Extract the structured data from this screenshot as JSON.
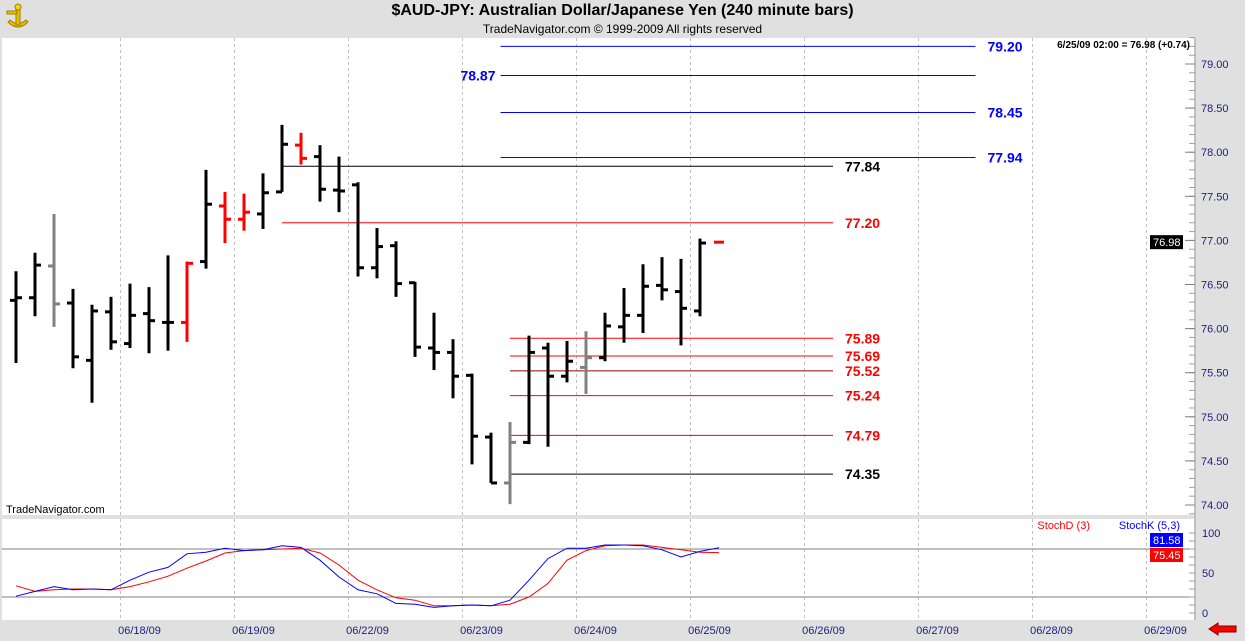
{
  "header": {
    "title": "$AUD-JPY:  Australian Dollar/Japanese Yen  (240 minute bars)",
    "subtitle": "TradeNavigator.com © 1999-2009 All rights reserved",
    "logo_icon": "sextant-icon"
  },
  "watermark": "TradeNavigator.com",
  "readout": "6/25/09 02:00 = 76.98 (+0.74)",
  "colors": {
    "up": "#000000",
    "down": "#ff0000",
    "neutral": "#808080",
    "stochK": "#0000ff",
    "stochD": "#ff0000",
    "blueLevel": "#0000ff"
  },
  "chart_data": [
    {
      "type": "ohlc",
      "title": "$AUD-JPY 240 minute bars",
      "ylim": [
        73.9,
        79.3
      ],
      "y_ticks": [
        "74.00",
        "74.50",
        "75.00",
        "75.50",
        "76.00",
        "76.50",
        "77.00",
        "77.50",
        "78.00",
        "78.50",
        "79.00"
      ],
      "y_tick_values": [
        74,
        74.5,
        75,
        75.5,
        76,
        76.5,
        77,
        77.5,
        78,
        78.5,
        79
      ],
      "last_price_label": "76.98",
      "last_price": 76.98,
      "x_labels": [
        "06/18/09",
        "06/19/09",
        "06/22/09",
        "06/23/09",
        "06/24/09",
        "06/25/09",
        "06/26/09",
        "06/27/09",
        "06/28/09",
        "06/29/09"
      ],
      "x_label_bar_index": [
        5.5,
        11.5,
        17.5,
        23.5,
        29.5,
        35.5,
        41.5,
        47.5,
        53.5,
        59.5
      ],
      "bars": [
        {
          "o": 76.32,
          "h": 76.65,
          "l": 75.61,
          "c": 76.35,
          "k": "up"
        },
        {
          "o": 76.35,
          "h": 76.86,
          "l": 76.14,
          "c": 76.72,
          "k": "up"
        },
        {
          "o": 76.71,
          "h": 77.3,
          "l": 76.02,
          "c": 76.28,
          "k": "neutral"
        },
        {
          "o": 76.29,
          "h": 76.45,
          "l": 75.55,
          "c": 75.68,
          "k": "up"
        },
        {
          "o": 75.64,
          "h": 76.27,
          "l": 75.16,
          "c": 76.2,
          "k": "up"
        },
        {
          "o": 76.19,
          "h": 76.36,
          "l": 75.76,
          "c": 75.85,
          "k": "up"
        },
        {
          "o": 75.83,
          "h": 76.51,
          "l": 75.78,
          "c": 76.15,
          "k": "up"
        },
        {
          "o": 76.17,
          "h": 76.47,
          "l": 75.72,
          "c": 76.09,
          "k": "up"
        },
        {
          "o": 76.07,
          "h": 76.83,
          "l": 75.75,
          "c": 76.07,
          "k": "up"
        },
        {
          "o": 76.07,
          "h": 76.76,
          "l": 75.85,
          "c": 76.74,
          "k": "down"
        },
        {
          "o": 76.76,
          "h": 77.8,
          "l": 76.68,
          "c": 77.41,
          "k": "up"
        },
        {
          "o": 77.39,
          "h": 77.55,
          "l": 76.97,
          "c": 77.24,
          "k": "down"
        },
        {
          "o": 77.24,
          "h": 77.53,
          "l": 77.11,
          "c": 77.32,
          "k": "down"
        },
        {
          "o": 77.3,
          "h": 77.76,
          "l": 77.13,
          "c": 77.54,
          "k": "up"
        },
        {
          "o": 77.55,
          "h": 78.31,
          "l": 77.55,
          "c": 78.09,
          "k": "up"
        },
        {
          "o": 78.08,
          "h": 78.22,
          "l": 77.86,
          "c": 77.93,
          "k": "down"
        },
        {
          "o": 77.95,
          "h": 78.08,
          "l": 77.44,
          "c": 77.58,
          "k": "up"
        },
        {
          "o": 77.57,
          "h": 77.95,
          "l": 77.32,
          "c": 77.56,
          "k": "up"
        },
        {
          "o": 77.63,
          "h": 77.66,
          "l": 76.59,
          "c": 76.69,
          "k": "up"
        },
        {
          "o": 76.69,
          "h": 77.14,
          "l": 76.57,
          "c": 76.93,
          "k": "up"
        },
        {
          "o": 76.94,
          "h": 76.99,
          "l": 76.36,
          "c": 76.51,
          "k": "up"
        },
        {
          "o": 76.52,
          "h": 76.53,
          "l": 75.68,
          "c": 75.79,
          "k": "up"
        },
        {
          "o": 75.78,
          "h": 76.18,
          "l": 75.53,
          "c": 75.73,
          "k": "up"
        },
        {
          "o": 75.73,
          "h": 75.88,
          "l": 75.21,
          "c": 75.46,
          "k": "up"
        },
        {
          "o": 75.47,
          "h": 75.49,
          "l": 74.46,
          "c": 74.78,
          "k": "up"
        },
        {
          "o": 74.77,
          "h": 74.82,
          "l": 74.25,
          "c": 74.25,
          "k": "up"
        },
        {
          "o": 74.25,
          "h": 74.94,
          "l": 74.01,
          "c": 74.71,
          "k": "neutral"
        },
        {
          "o": 74.71,
          "h": 75.92,
          "l": 74.69,
          "c": 75.73,
          "k": "up"
        },
        {
          "o": 75.78,
          "h": 75.84,
          "l": 74.66,
          "c": 75.46,
          "k": "up"
        },
        {
          "o": 75.46,
          "h": 75.86,
          "l": 75.39,
          "c": 75.63,
          "k": "up"
        },
        {
          "o": 75.56,
          "h": 75.97,
          "l": 75.26,
          "c": 75.67,
          "k": "neutral"
        },
        {
          "o": 75.67,
          "h": 76.18,
          "l": 75.63,
          "c": 76.03,
          "k": "up"
        },
        {
          "o": 76.02,
          "h": 76.46,
          "l": 75.84,
          "c": 76.15,
          "k": "up"
        },
        {
          "o": 76.15,
          "h": 76.73,
          "l": 75.95,
          "c": 76.48,
          "k": "up"
        },
        {
          "o": 76.49,
          "h": 76.81,
          "l": 76.32,
          "c": 76.44,
          "k": "up"
        },
        {
          "o": 76.42,
          "h": 76.79,
          "l": 75.81,
          "c": 76.23,
          "k": "up"
        },
        {
          "o": 76.2,
          "h": 77.02,
          "l": 76.14,
          "c": 76.97,
          "k": "up"
        },
        {
          "o": 76.98,
          "h": 76.98,
          "l": 76.98,
          "c": 76.98,
          "k": "down"
        }
      ],
      "levels": [
        {
          "value": 79.2,
          "label": "79.20",
          "color": "#0000ff",
          "from_bar": 25.5,
          "to_bar": 50.5,
          "label_side": "right"
        },
        {
          "value": 78.87,
          "label": "78.87",
          "color": "#0000ff",
          "from_bar": 25.5,
          "to_bar": 50.5,
          "label_side": "left"
        },
        {
          "value": 78.45,
          "label": "78.45",
          "color": "#0000ff",
          "from_bar": 25.5,
          "to_bar": 50.5,
          "label_side": "right"
        },
        {
          "value": 77.94,
          "label": "77.94",
          "color": "#0000ff",
          "from_bar": 25.5,
          "to_bar": 50.5,
          "label_side": "right"
        },
        {
          "value": 77.84,
          "label": "77.84",
          "color": "#000000",
          "from_bar": 14,
          "to_bar": 43,
          "label_side": "right"
        },
        {
          "value": 77.2,
          "label": "77.20",
          "color": "#ff0000",
          "from_bar": 14,
          "to_bar": 43,
          "label_side": "right"
        },
        {
          "value": 75.89,
          "label": "75.89",
          "color": "#ff0000",
          "from_bar": 26,
          "to_bar": 43,
          "label_side": "right"
        },
        {
          "value": 75.69,
          "label": "75.69",
          "color": "#ff0000",
          "from_bar": 26,
          "to_bar": 43,
          "label_side": "right"
        },
        {
          "value": 75.52,
          "label": "75.52",
          "color": "#990000",
          "from_bar": 26,
          "to_bar": 43,
          "label_side": "right",
          "label_color": "#ff0000"
        },
        {
          "value": 75.24,
          "label": "75.24",
          "color": "#ff0000",
          "from_bar": 26,
          "to_bar": 43,
          "label_side": "right"
        },
        {
          "value": 74.79,
          "label": "74.79",
          "color": "#ff0000",
          "from_bar": 26,
          "to_bar": 43,
          "label_side": "right"
        },
        {
          "value": 74.35,
          "label": "74.35",
          "color": "#000000",
          "from_bar": 26,
          "to_bar": 43,
          "label_side": "right"
        }
      ]
    },
    {
      "type": "line",
      "title": "Stochastics",
      "ylim": [
        0,
        100
      ],
      "y_ticks": [
        "0",
        "50",
        "100"
      ],
      "y_tick_values": [
        0,
        50,
        100
      ],
      "reference_lines": [
        20,
        80
      ],
      "series": [
        {
          "name": "StochK (5,3)",
          "color": "#0000ff",
          "last_label": "81.58",
          "values": [
            21,
            27,
            33,
            29,
            30,
            29,
            41,
            51,
            57,
            74,
            76,
            81,
            78,
            79,
            84,
            82,
            66,
            45,
            29,
            24,
            12,
            11,
            7,
            9,
            10,
            9,
            16,
            41,
            68,
            81,
            81,
            85,
            85,
            84,
            79,
            70,
            77,
            81.58
          ]
        },
        {
          "name": "StochD (3)",
          "color": "#ff0000",
          "last_label": "75.45",
          "values": [
            34,
            27,
            29,
            30,
            30,
            29,
            33,
            39,
            46,
            56,
            65,
            75,
            78,
            79,
            80,
            81,
            75,
            60,
            41,
            29,
            19,
            16,
            9,
            9,
            10,
            9,
            11,
            20,
            37,
            66,
            78,
            84,
            85,
            85,
            82,
            79,
            76,
            75.45
          ]
        }
      ]
    }
  ]
}
